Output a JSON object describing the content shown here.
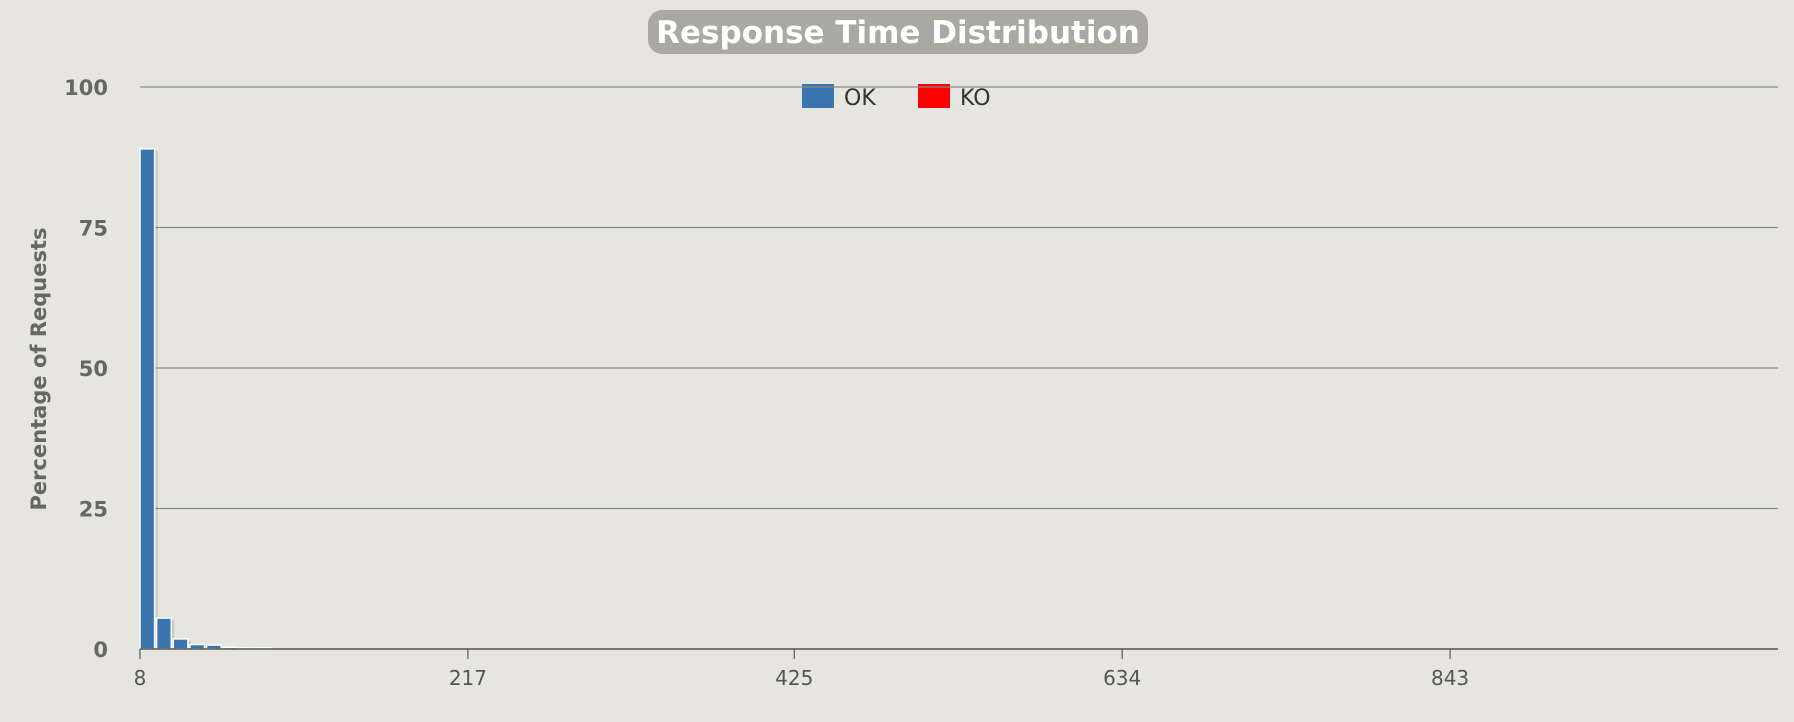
{
  "chart_data": {
    "type": "bar",
    "title": "Response Time Distribution",
    "ylabel": "Percentage of Requests",
    "xlabel": "",
    "ylim": [
      0,
      100
    ],
    "yticks": [
      "0",
      "25",
      "50",
      "75",
      "100"
    ],
    "xtick_labels": [
      "8",
      "217",
      "425",
      "634",
      "843"
    ],
    "xlim": [
      8,
      1052
    ],
    "grid": true,
    "legend_position": "top-center",
    "bin_width": 10.6,
    "series": [
      {
        "name": "OK",
        "color": "#3a75b0",
        "x": [
          8,
          18.6,
          29.2,
          39.8,
          50.4,
          61,
          71.6,
          82.2
        ],
        "values": [
          89,
          5.5,
          1.8,
          0.8,
          0.7,
          0.3,
          0.2,
          0.2
        ]
      },
      {
        "name": "KO",
        "color": "#ff0000",
        "x": [],
        "values": []
      }
    ]
  }
}
